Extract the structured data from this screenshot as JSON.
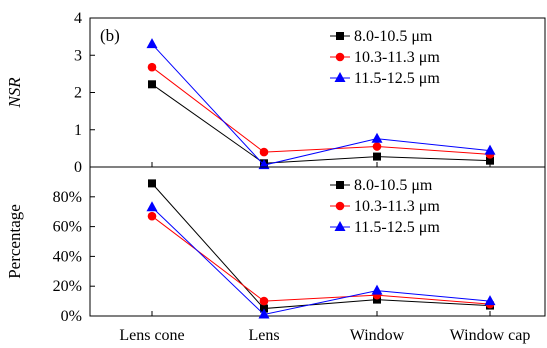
{
  "chart_data": [
    {
      "type": "line",
      "annotation": "(b)",
      "ylabel": "NSR",
      "ylim": [
        0,
        4
      ],
      "yticks": [
        0,
        1,
        2,
        3,
        4
      ],
      "ytick_labels": [
        "0",
        "1",
        "2",
        "3",
        "4"
      ],
      "categories": [
        "Lens cone",
        "Lens",
        "Window",
        "Window cap"
      ],
      "show_category_labels": false,
      "grid": false,
      "legend_position": "top-right",
      "series": [
        {
          "name": "8.0-10.5 μm",
          "color": "#000000",
          "marker": "square",
          "values": [
            2.22,
            0.1,
            0.28,
            0.17
          ]
        },
        {
          "name": "10.3-11.3 μm",
          "color": "#ff0000",
          "marker": "circle",
          "values": [
            2.68,
            0.4,
            0.55,
            0.34
          ]
        },
        {
          "name": "11.5-12.5 μm",
          "color": "#0000ff",
          "marker": "triangle",
          "values": [
            3.3,
            0.05,
            0.76,
            0.44
          ]
        }
      ]
    },
    {
      "type": "line",
      "ylabel": "Percentage",
      "ylim": [
        0,
        100
      ],
      "yticks": [
        0,
        20,
        40,
        60,
        80
      ],
      "ytick_labels": [
        "0%",
        "20%",
        "40%",
        "60%",
        "80%"
      ],
      "categories": [
        "Lens cone",
        "Lens",
        "Window",
        "Window cap"
      ],
      "show_category_labels": true,
      "grid": false,
      "legend_position": "top-right",
      "series": [
        {
          "name": "8.0-10.5 μm",
          "color": "#000000",
          "marker": "square",
          "values": [
            89,
            5,
            11,
            7
          ]
        },
        {
          "name": "10.3-11.3 μm",
          "color": "#ff0000",
          "marker": "circle",
          "values": [
            67,
            10,
            14,
            8
          ]
        },
        {
          "name": "11.5-12.5 μm",
          "color": "#0000ff",
          "marker": "triangle",
          "values": [
            73,
            1,
            17,
            10
          ]
        }
      ]
    }
  ]
}
